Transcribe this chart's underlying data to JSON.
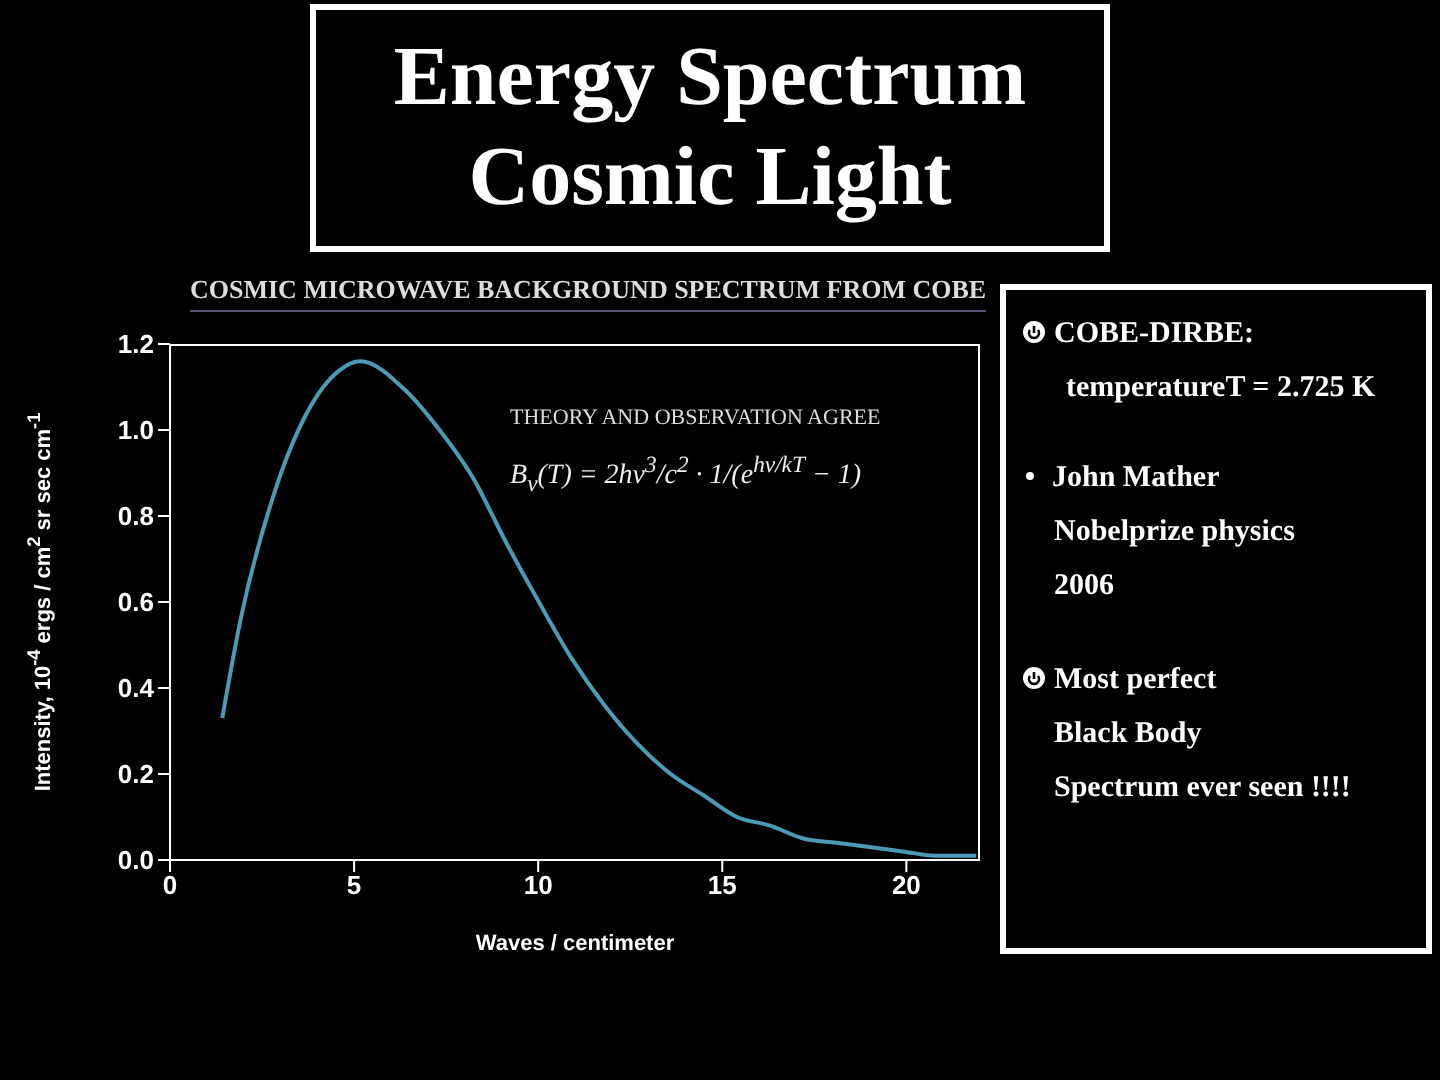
{
  "chart_data": {
    "type": "line",
    "title": "Energy Spectrum Cosmic Light",
    "subtitle": "COSMIC MICROWAVE BACKGROUND SPECTRUM FROM COBE",
    "xlabel": "Waves / centimeter",
    "ylabel": "Intensity, 10$^{-4}$ ergs / cm$^{2}$ sr sec cm$^{-1}$",
    "x": [
      1.42,
      1.92,
      2.82,
      3.72,
      4.62,
      5.16,
      6.42,
      7.32,
      8.22,
      9.12,
      10.02,
      10.9,
      11.8,
      12.7,
      13.6,
      14.5,
      15.4,
      16.3,
      17.2,
      18.1,
      19.0,
      19.9,
      20.8,
      21.9
    ],
    "series": [
      {
        "color": "#4a9ab8",
        "values": [
          0.33,
          0.56,
          0.85,
          1.04,
          1.14,
          1.16,
          1.09,
          1.0,
          0.89,
          0.74,
          0.6,
          0.47,
          0.36,
          0.27,
          0.2,
          0.15,
          0.1,
          0.08,
          0.05,
          0.04,
          0.03,
          0.02,
          0.01,
          0.01
        ]
      }
    ],
    "xlim": [
      0,
      22
    ],
    "xticks": [
      0,
      5,
      10,
      15,
      20
    ],
    "ylim": [
      0,
      1.2
    ],
    "yticks": [
      {
        "value": 0,
        "label": "0.0"
      },
      0.2,
      0.4,
      0.6,
      0.8,
      {
        "value": 1,
        "label": "1.0"
      },
      1.2
    ],
    "grid": false,
    "marker": "none",
    "line_style": "solid",
    "annotations": [
      "THEORY AND OBSERVATION AGREE",
      "B$_{ν}$(T) = 2hν$^{3}$/c$^{2}$ · 1/(e$^{hν/kT}$ − 1)",
      "COBE-DIRBE:",
      "temperatureT = 2.725 K",
      "John Mather",
      "Nobelprize physics",
      "2006",
      "Most perfect",
      "Black Body",
      "Spectrum ever seen !!!!"
    ]
  }
}
